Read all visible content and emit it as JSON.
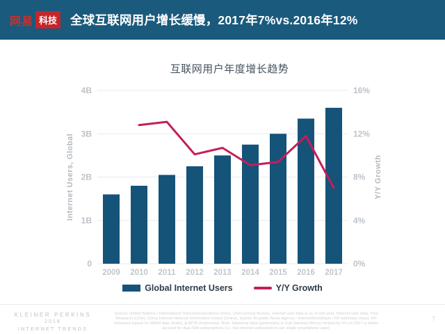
{
  "header": {
    "logo_part1": "网易",
    "logo_part2": "科技",
    "title": "全球互联网用户增长缓慢，2017年7%vs.2016年12%"
  },
  "chart_data": {
    "type": "bar",
    "title": "互联网用户年度增长趋势",
    "categories": [
      "2009",
      "2010",
      "2011",
      "2012",
      "2013",
      "2014",
      "2015",
      "2016",
      "2017"
    ],
    "series": [
      {
        "name": "Global Internet Users",
        "type": "bar",
        "axis": "left",
        "unit": "B",
        "color": "#155379",
        "values": [
          1.6,
          1.8,
          2.05,
          2.25,
          2.5,
          2.75,
          3.0,
          3.35,
          3.6
        ]
      },
      {
        "name": "Y/Y Growth",
        "type": "line",
        "axis": "right",
        "unit": "%",
        "color": "#C41E5A",
        "values": [
          null,
          12.8,
          13.1,
          10.1,
          10.7,
          9.1,
          9.4,
          11.8,
          7.0
        ]
      }
    ],
    "left_axis": {
      "label": "Internet Users, Global",
      "min": 0,
      "max": 4,
      "ticks": [
        "0",
        "1B",
        "2B",
        "3B",
        "4B"
      ]
    },
    "right_axis": {
      "label": "Y/Y Growth",
      "min": 0,
      "max": 16,
      "ticks": [
        "0%",
        "4%",
        "8%",
        "12%",
        "16%"
      ]
    },
    "grid": true,
    "legend_position": "bottom",
    "colors": {
      "grid": "#EAEDEF",
      "tick_text": "#BDC3C8",
      "axis_title": "#B3BAC0"
    }
  },
  "footer": {
    "brand": [
      "KLEINER PERKINS",
      "2018",
      "INTERNET TRENDS"
    ],
    "source": "Source: United Nations / International Telecommunications Union, USA Census Bureau. Internet user data is as of mid-year. Internet user data: Pew Research (USA), China Internet Network Information Center (China), Islamic Republic News Agency / InternetWorldStats / KP estimates (Iran), KP estimates based on IAMAI data (India), & APJII (Indonesia). Note: Historical data (particularly in Sub-Saharan Africa) revised by ITU in 2017 to better account for dual-SIM subscriptions (i.e. two internet subscriptions per single smartphone user).",
    "page_number": "7"
  }
}
